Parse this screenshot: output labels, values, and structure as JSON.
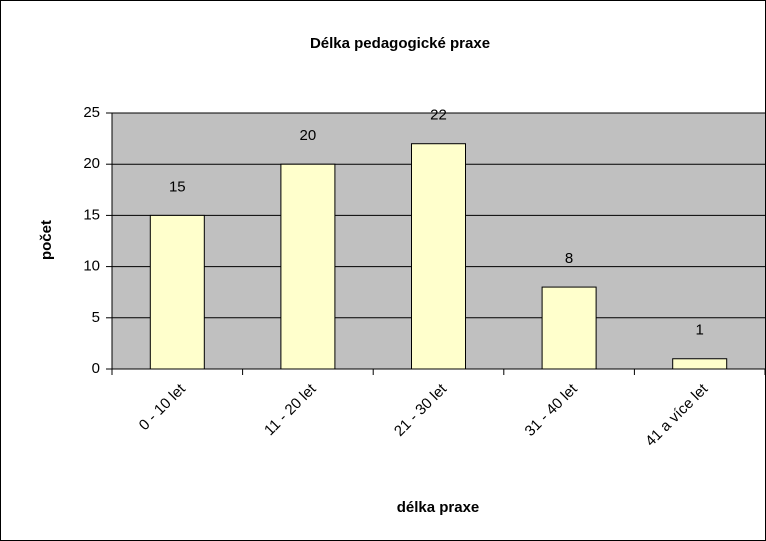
{
  "chart_data": {
    "type": "bar",
    "title": "Délka pedagogické praxe",
    "x_label": "délka praxe",
    "y_label": "počet",
    "categories": [
      "0 - 10 let",
      "11 - 20 let",
      "21 - 30 let",
      "31 - 40 let",
      "41 a více let"
    ],
    "values": [
      15,
      20,
      22,
      8,
      1
    ],
    "color": "#ffffcc",
    "ylim": [
      0,
      25
    ],
    "yticks": [
      0,
      5,
      10,
      15,
      20,
      25
    ],
    "grid": true
  }
}
